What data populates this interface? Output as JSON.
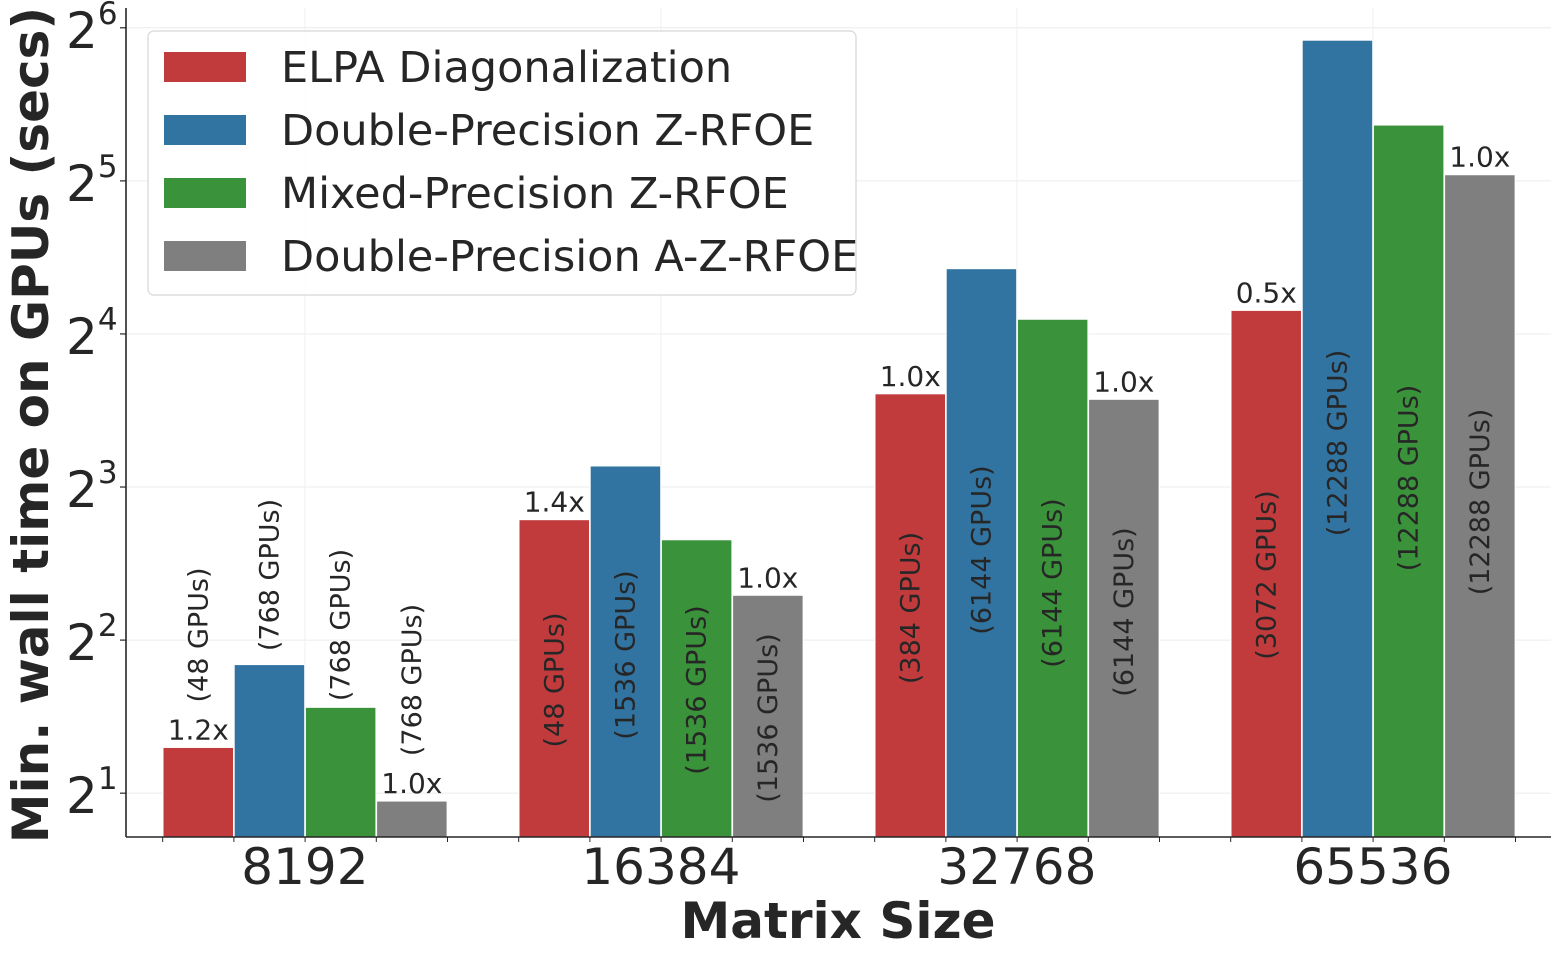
{
  "chart_data": {
    "type": "bar",
    "xlabel": "Matrix Size",
    "ylabel": "Min. wall time on GPUs (secs)",
    "yscale": "log2",
    "ylim": [
      1.64,
      70
    ],
    "grid": true,
    "legend_placement": "top-left",
    "categories": [
      "8192",
      "16384",
      "32768",
      "65536"
    ],
    "y_ticks": [
      {
        "base": "2",
        "exp": "1",
        "value": 2
      },
      {
        "base": "2",
        "exp": "2",
        "value": 4
      },
      {
        "base": "2",
        "exp": "3",
        "value": 8
      },
      {
        "base": "2",
        "exp": "4",
        "value": 16
      },
      {
        "base": "2",
        "exp": "5",
        "value": 32
      },
      {
        "base": "2",
        "exp": "6",
        "value": 64
      }
    ],
    "series": [
      {
        "name": "ELPA Diagonalization",
        "color": "#c13b3d",
        "values": [
          2.46,
          6.9,
          12.2,
          17.8
        ],
        "gpus": [
          "(48 GPUs)",
          "(48 GPUs)",
          "(384 GPUs)",
          "(3072 GPUs)"
        ],
        "speedup": [
          "1.2x",
          "1.4x",
          "1.0x",
          "0.5x"
        ]
      },
      {
        "name": "Double-Precision Z-RFOE",
        "color": "#3274a1",
        "values": [
          3.58,
          8.8,
          21.5,
          60.5
        ],
        "gpus": [
          "(768 GPUs)",
          "(1536 GPUs)",
          "(6144 GPUs)",
          "(12288 GPUs)"
        ],
        "speedup": [
          "",
          "",
          "",
          ""
        ]
      },
      {
        "name": "Mixed-Precision Z-RFOE",
        "color": "#3a923a",
        "values": [
          2.95,
          6.3,
          17.1,
          41.2
        ],
        "gpus": [
          "(768 GPUs)",
          "(1536 GPUs)",
          "(6144 GPUs)",
          "(12288 GPUs)"
        ],
        "speedup": [
          "",
          "",
          "",
          ""
        ]
      },
      {
        "name": "Double-Precision A-Z-RFOE",
        "color": "#7f7f7f",
        "values": [
          1.93,
          4.9,
          11.9,
          32.9
        ],
        "gpus": [
          "(768 GPUs)",
          "(1536 GPUs)",
          "(6144 GPUs)",
          "(12288 GPUs)"
        ],
        "speedup": [
          "1.0x",
          "1.0x",
          "1.0x",
          "1.0x"
        ]
      }
    ]
  }
}
